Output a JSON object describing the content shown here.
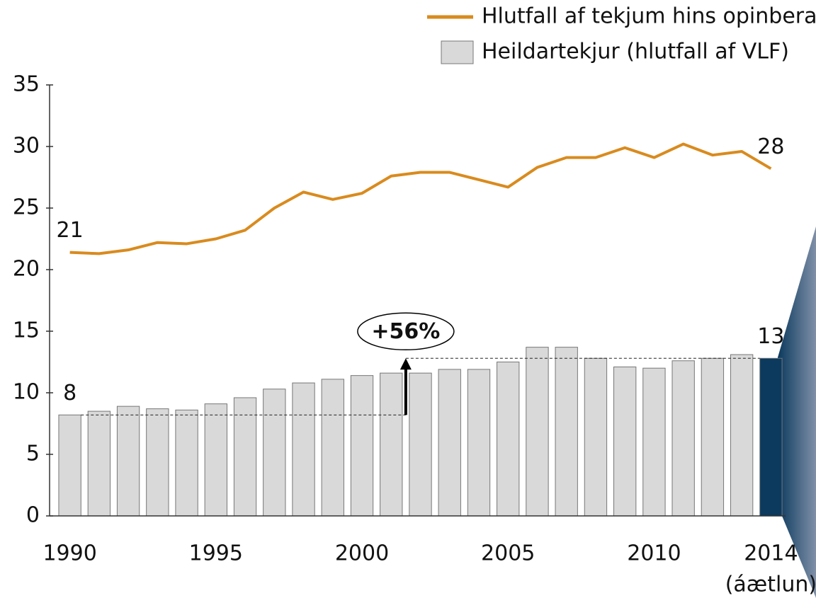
{
  "chart_data": {
    "type": "bar_line",
    "categories": [
      "1990",
      null,
      null,
      null,
      null,
      "1995",
      null,
      null,
      null,
      null,
      "2000",
      null,
      null,
      null,
      null,
      "2005",
      null,
      null,
      null,
      null,
      "2010",
      null,
      null,
      null,
      "2014"
    ],
    "series": [
      {
        "name": "Hlutfall af tekjum hins opinbera",
        "type": "line",
        "color": "#d98b1e",
        "values": [
          21.4,
          21.3,
          21.6,
          22.2,
          22.1,
          22.5,
          23.2,
          25.0,
          26.3,
          25.7,
          26.2,
          27.6,
          27.9,
          27.9,
          27.3,
          26.7,
          28.3,
          29.1,
          29.1,
          29.9,
          29.1,
          30.2,
          29.3,
          29.6,
          28.2
        ],
        "value_labels": [
          "21",
          null,
          null,
          null,
          null,
          null,
          null,
          null,
          null,
          null,
          null,
          null,
          null,
          null,
          null,
          null,
          null,
          null,
          null,
          null,
          null,
          null,
          null,
          null,
          "28"
        ]
      },
      {
        "name": "Heildartekjur (hlutfall af  VLF)",
        "type": "bar",
        "color": "#d9d9d9",
        "colors": [
          "#d9d9d9",
          "#d9d9d9",
          "#d9d9d9",
          "#d9d9d9",
          "#d9d9d9",
          "#d9d9d9",
          "#d9d9d9",
          "#d9d9d9",
          "#d9d9d9",
          "#d9d9d9",
          "#d9d9d9",
          "#d9d9d9",
          "#d9d9d9",
          "#d9d9d9",
          "#d9d9d9",
          "#d9d9d9",
          "#d9d9d9",
          "#d9d9d9",
          "#d9d9d9",
          "#d9d9d9",
          "#d9d9d9",
          "#d9d9d9",
          "#d9d9d9",
          "#d9d9d9",
          "#0b3a5e"
        ],
        "values": [
          8.2,
          8.5,
          8.9,
          8.7,
          8.6,
          9.1,
          9.6,
          10.3,
          10.8,
          11.1,
          11.4,
          11.6,
          11.6,
          11.9,
          11.9,
          12.5,
          13.7,
          13.7,
          12.8,
          12.1,
          12.0,
          12.6,
          12.8,
          13.1,
          12.8
        ],
        "value_labels": [
          "8",
          null,
          null,
          null,
          null,
          null,
          null,
          null,
          null,
          null,
          null,
          null,
          null,
          null,
          null,
          null,
          null,
          null,
          null,
          null,
          null,
          null,
          null,
          null,
          "13"
        ]
      }
    ],
    "annotations": [
      "+56%",
      "(áætlun)"
    ],
    "ylim": [
      0,
      35
    ],
    "yticks": [
      0,
      5,
      10,
      15,
      20,
      25,
      30,
      35
    ],
    "legend": "top-right"
  }
}
